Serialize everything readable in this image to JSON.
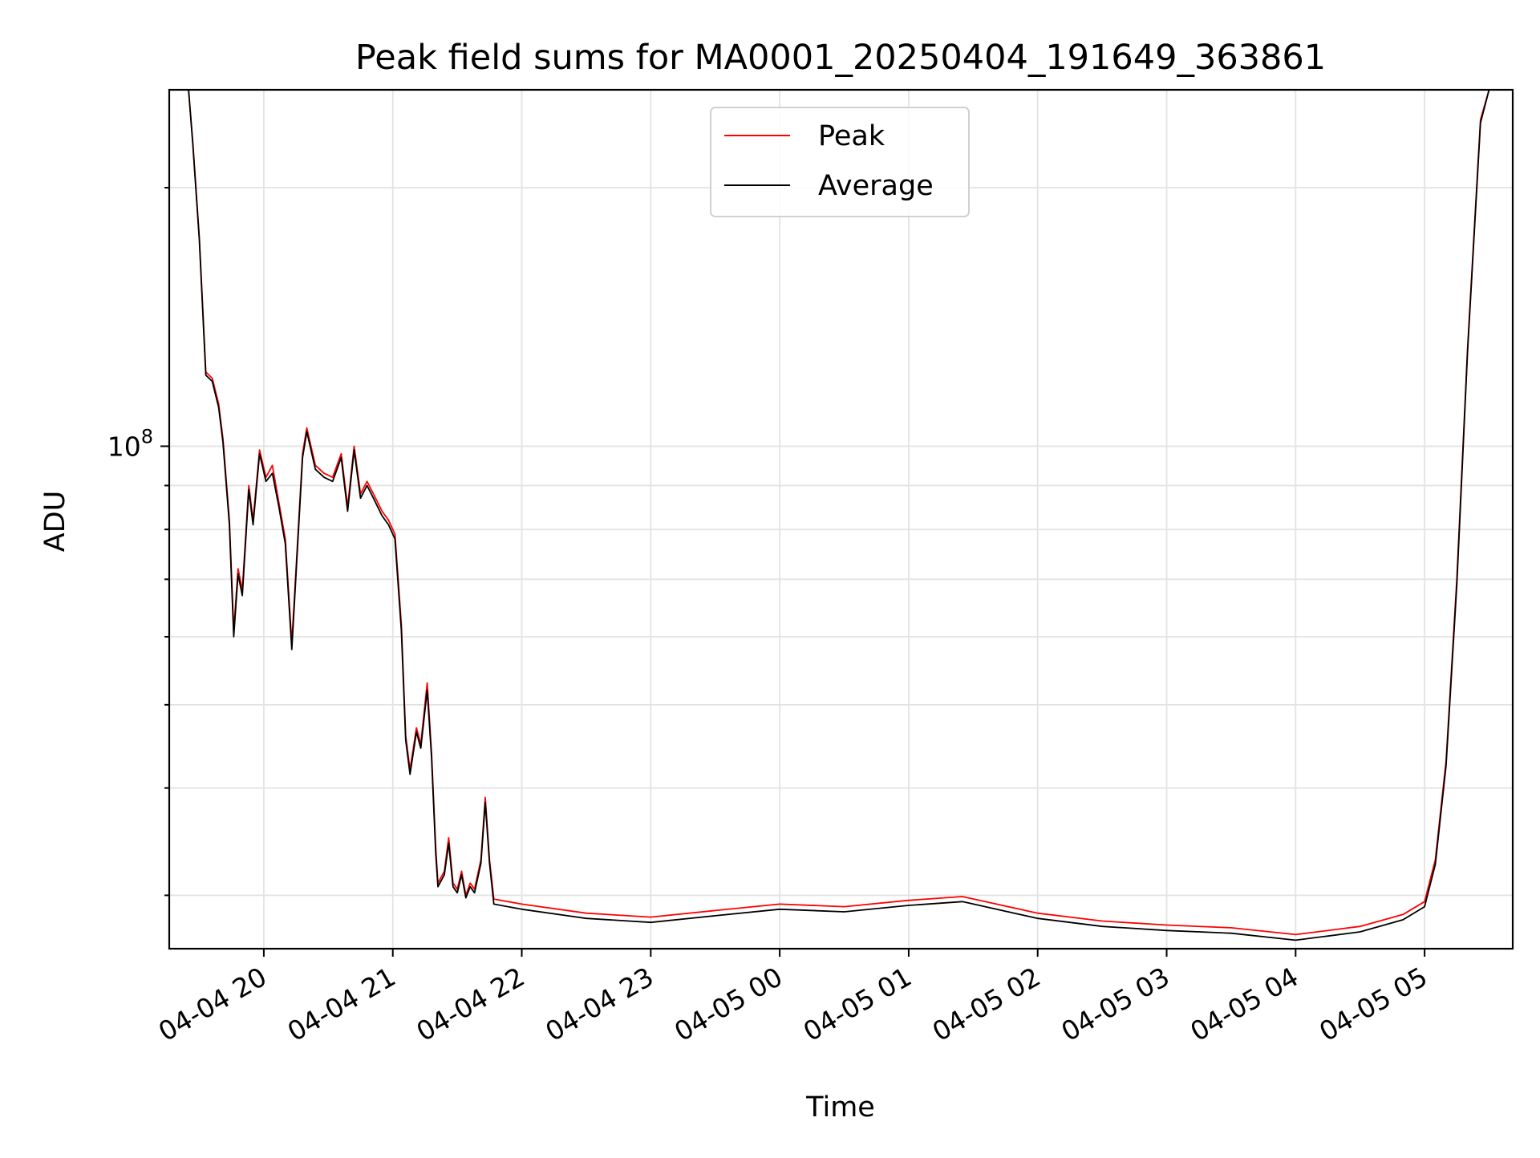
{
  "chart_data": {
    "type": "line",
    "title": "Peak field sums for MA0001_20250404_191649_363861",
    "xlabel": "Time",
    "ylabel": "ADU",
    "y_scale": "log",
    "ylim": [
      26000000,
      260000000
    ],
    "y_major_ticks": [
      {
        "value": 100000000,
        "base": "10",
        "exponent": "8"
      }
    ],
    "y_minor_ticks": [
      30000000,
      40000000,
      50000000,
      60000000,
      70000000,
      80000000,
      90000000,
      200000000
    ],
    "grid": true,
    "legend_position": "upper center",
    "x_domain": [
      "2025-04-04 19:16",
      "2025-04-05 05:41"
    ],
    "x_ticks": [
      {
        "time": "2025-04-04 20:00",
        "label": "04-04 20"
      },
      {
        "time": "2025-04-04 21:00",
        "label": "04-04 21"
      },
      {
        "time": "2025-04-04 22:00",
        "label": "04-04 22"
      },
      {
        "time": "2025-04-04 23:00",
        "label": "04-04 23"
      },
      {
        "time": "2025-04-05 00:00",
        "label": "04-05 00"
      },
      {
        "time": "2025-04-05 01:00",
        "label": "04-05 01"
      },
      {
        "time": "2025-04-05 02:00",
        "label": "04-05 02"
      },
      {
        "time": "2025-04-05 03:00",
        "label": "04-05 03"
      },
      {
        "time": "2025-04-05 04:00",
        "label": "04-05 04"
      },
      {
        "time": "2025-04-05 05:00",
        "label": "04-05 05"
      }
    ],
    "series": [
      {
        "name": "Peak",
        "color": "#ff0000",
        "points": [
          [
            "2025-04-04 19:16",
            260000000
          ],
          [
            "2025-04-04 19:25",
            260000000
          ],
          [
            "2025-04-04 19:27",
            225000000
          ],
          [
            "2025-04-04 19:30",
            175000000
          ],
          [
            "2025-04-04 19:33",
            122000000
          ],
          [
            "2025-04-04 19:36",
            120000000
          ],
          [
            "2025-04-04 19:39",
            112000000
          ],
          [
            "2025-04-04 19:41",
            102000000
          ],
          [
            "2025-04-04 19:44",
            82000000
          ],
          [
            "2025-04-04 19:46",
            61000000
          ],
          [
            "2025-04-04 19:48",
            72000000
          ],
          [
            "2025-04-04 19:50",
            68000000
          ],
          [
            "2025-04-04 19:53",
            90000000
          ],
          [
            "2025-04-04 19:55",
            82000000
          ],
          [
            "2025-04-04 19:58",
            99000000
          ],
          [
            "2025-04-04 20:01",
            92000000
          ],
          [
            "2025-04-04 20:04",
            95000000
          ],
          [
            "2025-04-04 20:07",
            86000000
          ],
          [
            "2025-04-04 20:10",
            78000000
          ],
          [
            "2025-04-04 20:13",
            59000000
          ],
          [
            "2025-04-04 20:15",
            72000000
          ],
          [
            "2025-04-04 20:18",
            98000000
          ],
          [
            "2025-04-04 20:20",
            105000000
          ],
          [
            "2025-04-04 20:24",
            95000000
          ],
          [
            "2025-04-04 20:28",
            93000000
          ],
          [
            "2025-04-04 20:32",
            92000000
          ],
          [
            "2025-04-04 20:36",
            98000000
          ],
          [
            "2025-04-04 20:39",
            85000000
          ],
          [
            "2025-04-04 20:42",
            100000000
          ],
          [
            "2025-04-04 20:45",
            88000000
          ],
          [
            "2025-04-04 20:48",
            91000000
          ],
          [
            "2025-04-04 20:51",
            88000000
          ],
          [
            "2025-04-04 20:55",
            84000000
          ],
          [
            "2025-04-04 20:58",
            82000000
          ],
          [
            "2025-04-04 21:01",
            79000000
          ],
          [
            "2025-04-04 21:04",
            62000000
          ],
          [
            "2025-04-04 21:06",
            46000000
          ],
          [
            "2025-04-04 21:08",
            42000000
          ],
          [
            "2025-04-04 21:11",
            47000000
          ],
          [
            "2025-04-04 21:13",
            45000000
          ],
          [
            "2025-04-04 21:16",
            53000000
          ],
          [
            "2025-04-04 21:18",
            44000000
          ],
          [
            "2025-04-04 21:20",
            34000000
          ],
          [
            "2025-04-04 21:21",
            31000000
          ],
          [
            "2025-04-04 21:24",
            32000000
          ],
          [
            "2025-04-04 21:26",
            35000000
          ],
          [
            "2025-04-04 21:28",
            31000000
          ],
          [
            "2025-04-04 21:30",
            30500000
          ],
          [
            "2025-04-04 21:32",
            32000000
          ],
          [
            "2025-04-04 21:34",
            30000000
          ],
          [
            "2025-04-04 21:36",
            31000000
          ],
          [
            "2025-04-04 21:38",
            30500000
          ],
          [
            "2025-04-04 21:41",
            33000000
          ],
          [
            "2025-04-04 21:43",
            39000000
          ],
          [
            "2025-04-04 21:45",
            33000000
          ],
          [
            "2025-04-04 21:47",
            29700000
          ],
          [
            "2025-04-04 22:00",
            29300000
          ],
          [
            "2025-04-04 22:30",
            28600000
          ],
          [
            "2025-04-04 23:00",
            28300000
          ],
          [
            "2025-04-04 23:30",
            28800000
          ],
          [
            "2025-04-05 00:00",
            29300000
          ],
          [
            "2025-04-05 00:30",
            29100000
          ],
          [
            "2025-04-05 01:00",
            29600000
          ],
          [
            "2025-04-05 01:25",
            29900000
          ],
          [
            "2025-04-05 02:00",
            28600000
          ],
          [
            "2025-04-05 02:30",
            28000000
          ],
          [
            "2025-04-05 03:00",
            27700000
          ],
          [
            "2025-04-05 03:30",
            27500000
          ],
          [
            "2025-04-05 04:00",
            27000000
          ],
          [
            "2025-04-05 04:30",
            27600000
          ],
          [
            "2025-04-05 04:50",
            28500000
          ],
          [
            "2025-04-05 05:00",
            29500000
          ],
          [
            "2025-04-05 05:05",
            33000000
          ],
          [
            "2025-04-05 05:10",
            43000000
          ],
          [
            "2025-04-05 05:15",
            70000000
          ],
          [
            "2025-04-05 05:20",
            130000000
          ],
          [
            "2025-04-05 05:26",
            240000000
          ],
          [
            "2025-04-05 05:30",
            260000000
          ],
          [
            "2025-04-05 05:41",
            260000000
          ]
        ]
      },
      {
        "name": "Average",
        "color": "#000000",
        "points": [
          [
            "2025-04-04 19:16",
            260000000
          ],
          [
            "2025-04-04 19:25",
            260000000
          ],
          [
            "2025-04-04 19:27",
            224000000
          ],
          [
            "2025-04-04 19:30",
            174000000
          ],
          [
            "2025-04-04 19:33",
            121000000
          ],
          [
            "2025-04-04 19:36",
            119000000
          ],
          [
            "2025-04-04 19:39",
            111000000
          ],
          [
            "2025-04-04 19:41",
            101000000
          ],
          [
            "2025-04-04 19:44",
            81000000
          ],
          [
            "2025-04-04 19:46",
            60000000
          ],
          [
            "2025-04-04 19:48",
            71000000
          ],
          [
            "2025-04-04 19:50",
            67000000
          ],
          [
            "2025-04-04 19:53",
            89000000
          ],
          [
            "2025-04-04 19:55",
            81000000
          ],
          [
            "2025-04-04 19:58",
            98000000
          ],
          [
            "2025-04-04 20:01",
            91000000
          ],
          [
            "2025-04-04 20:04",
            93000000
          ],
          [
            "2025-04-04 20:07",
            85000000
          ],
          [
            "2025-04-04 20:10",
            77000000
          ],
          [
            "2025-04-04 20:13",
            58000000
          ],
          [
            "2025-04-04 20:15",
            71000000
          ],
          [
            "2025-04-04 20:18",
            97000000
          ],
          [
            "2025-04-04 20:20",
            104000000
          ],
          [
            "2025-04-04 20:24",
            94000000
          ],
          [
            "2025-04-04 20:28",
            92000000
          ],
          [
            "2025-04-04 20:32",
            91000000
          ],
          [
            "2025-04-04 20:36",
            97000000
          ],
          [
            "2025-04-04 20:39",
            84000000
          ],
          [
            "2025-04-04 20:42",
            99000000
          ],
          [
            "2025-04-04 20:45",
            87000000
          ],
          [
            "2025-04-04 20:48",
            90000000
          ],
          [
            "2025-04-04 20:51",
            87000000
          ],
          [
            "2025-04-04 20:55",
            83000000
          ],
          [
            "2025-04-04 20:58",
            81000000
          ],
          [
            "2025-04-04 21:01",
            78000000
          ],
          [
            "2025-04-04 21:04",
            61000000
          ],
          [
            "2025-04-04 21:06",
            45500000
          ],
          [
            "2025-04-04 21:08",
            41500000
          ],
          [
            "2025-04-04 21:11",
            46500000
          ],
          [
            "2025-04-04 21:13",
            44500000
          ],
          [
            "2025-04-04 21:16",
            52000000
          ],
          [
            "2025-04-04 21:18",
            43500000
          ],
          [
            "2025-04-04 21:20",
            33500000
          ],
          [
            "2025-04-04 21:21",
            30700000
          ],
          [
            "2025-04-04 21:24",
            31700000
          ],
          [
            "2025-04-04 21:26",
            34500000
          ],
          [
            "2025-04-04 21:28",
            30700000
          ],
          [
            "2025-04-04 21:30",
            30200000
          ],
          [
            "2025-04-04 21:32",
            31700000
          ],
          [
            "2025-04-04 21:34",
            29800000
          ],
          [
            "2025-04-04 21:36",
            30700000
          ],
          [
            "2025-04-04 21:38",
            30200000
          ],
          [
            "2025-04-04 21:41",
            32700000
          ],
          [
            "2025-04-04 21:43",
            38500000
          ],
          [
            "2025-04-04 21:45",
            32700000
          ],
          [
            "2025-04-04 21:47",
            29300000
          ],
          [
            "2025-04-04 22:00",
            28900000
          ],
          [
            "2025-04-04 22:30",
            28200000
          ],
          [
            "2025-04-04 23:00",
            27900000
          ],
          [
            "2025-04-04 23:30",
            28400000
          ],
          [
            "2025-04-05 00:00",
            28900000
          ],
          [
            "2025-04-05 00:30",
            28700000
          ],
          [
            "2025-04-05 01:00",
            29200000
          ],
          [
            "2025-04-05 01:25",
            29500000
          ],
          [
            "2025-04-05 02:00",
            28200000
          ],
          [
            "2025-04-05 02:30",
            27600000
          ],
          [
            "2025-04-05 03:00",
            27300000
          ],
          [
            "2025-04-05 03:30",
            27100000
          ],
          [
            "2025-04-05 04:00",
            26600000
          ],
          [
            "2025-04-05 04:30",
            27200000
          ],
          [
            "2025-04-05 04:50",
            28100000
          ],
          [
            "2025-04-05 05:00",
            29100000
          ],
          [
            "2025-04-05 05:05",
            32600000
          ],
          [
            "2025-04-05 05:10",
            42500000
          ],
          [
            "2025-04-05 05:15",
            69000000
          ],
          [
            "2025-04-05 05:20",
            129000000
          ],
          [
            "2025-04-05 05:26",
            238000000
          ],
          [
            "2025-04-05 05:30",
            260000000
          ],
          [
            "2025-04-05 05:41",
            260000000
          ]
        ]
      }
    ]
  }
}
